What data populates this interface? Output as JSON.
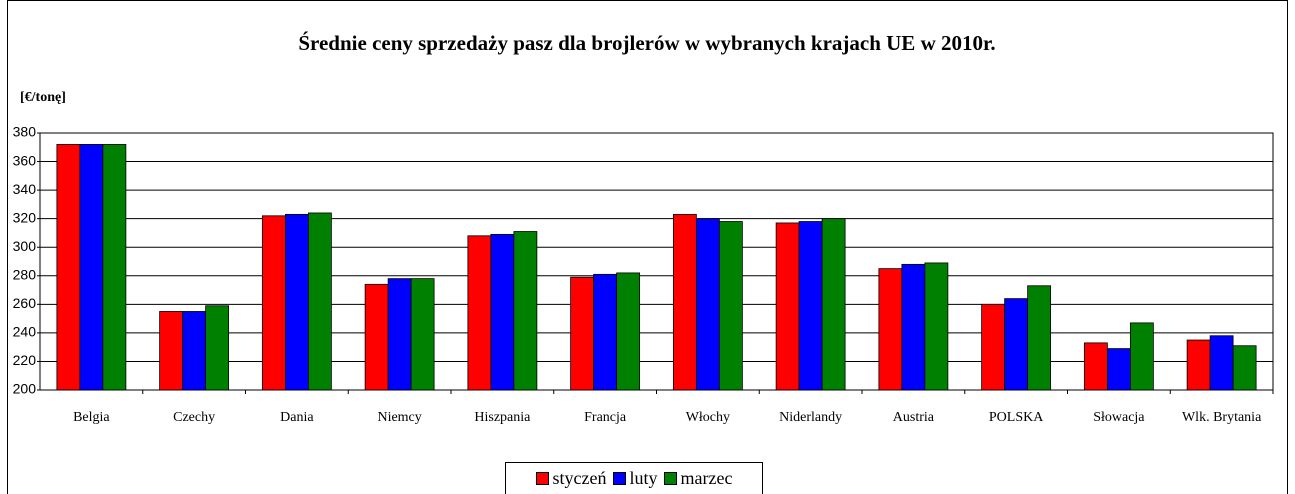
{
  "chart_data": {
    "type": "bar",
    "title": "Średnie ceny sprzedaży pasz dla brojlerów w wybranych krajach UE w 2010r.",
    "y_label": "[€/tonę]",
    "categories": [
      "Belgia",
      "Czechy",
      "Dania",
      "Niemcy",
      "Hiszpania",
      "Francja",
      "Włochy",
      "Niderlandy",
      "Austria",
      "POLSKA",
      "Słowacja",
      "Wlk. Brytania"
    ],
    "series": [
      {
        "name": "styczeń",
        "color": "#ff0000",
        "values": [
          372,
          255,
          322,
          274,
          308,
          279,
          323,
          317,
          285,
          260,
          233,
          235
        ]
      },
      {
        "name": "luty",
        "color": "#0000ff",
        "values": [
          372,
          255,
          323,
          278,
          309,
          281,
          320,
          318,
          288,
          264,
          229,
          238
        ]
      },
      {
        "name": "marzec",
        "color": "#008000",
        "values": [
          372,
          259,
          324,
          278,
          311,
          282,
          318,
          320,
          289,
          273,
          247,
          231
        ]
      }
    ],
    "ylim": [
      200,
      380
    ],
    "yticks": [
      200,
      220,
      240,
      260,
      280,
      300,
      320,
      340,
      360,
      380
    ],
    "grid": true
  }
}
